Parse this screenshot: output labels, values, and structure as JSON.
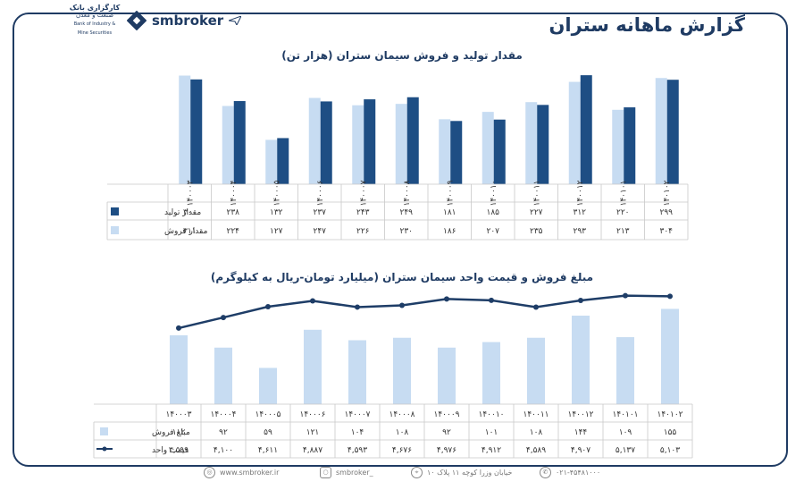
{
  "header": {
    "bank_name_line1": "کارگزاری بانک",
    "bank_name_line2": "صنعت و معدن",
    "bank_name_en": "Bank of Industry & Mine Securities",
    "brand": "smbroker",
    "page_title": "گزارش ماهانه ستران"
  },
  "footer": {
    "website": "www.smbroker.ir",
    "instagram": "smbroker_",
    "address": "خیابان وزرا کوچه ۱۱ پلاک ۱۰",
    "phone": "۰۲۱-۴۵۴۸۱۰۰۰"
  },
  "colors": {
    "production": "#1e4e84",
    "sales": "#c7dcf2",
    "line": "#1e3d67",
    "frame": "#1f3b63"
  },
  "chart_data": [
    {
      "type": "bar",
      "title": "مقدار تولید و فروش سیمان ستران (هزار تن)",
      "categories": [
        "۱۴۰۰۰۳",
        "۱۴۰۰۰۴",
        "۱۴۰۰۰۵",
        "۱۴۰۰۰۶",
        "۱۴۰۰۰۷",
        "۱۴۰۰۰۸",
        "۱۴۰۰۰۹",
        "۱۴۰۰۱۰",
        "۱۴۰۰۱۱",
        "۱۴۰۰۱۲",
        "۱۴۰۱۰۱",
        "۱۴۰۱۰۲"
      ],
      "series": [
        {
          "name": "مقدار تولید",
          "color": "#1e4e84",
          "values": [
            300,
            238,
            132,
            237,
            243,
            249,
            181,
            185,
            227,
            312,
            220,
            299
          ],
          "labels": [
            "۳۰۰",
            "۲۳۸",
            "۱۳۲",
            "۲۳۷",
            "۲۴۳",
            "۲۴۹",
            "۱۸۱",
            "۱۸۵",
            "۲۲۷",
            "۳۱۲",
            "۲۲۰",
            "۲۹۹"
          ]
        },
        {
          "name": "مقدار فروش",
          "color": "#c7dcf2",
          "values": [
            311,
            224,
            127,
            247,
            226,
            230,
            186,
            207,
            235,
            293,
            213,
            304
          ],
          "labels": [
            "۳۱۱",
            "۲۲۴",
            "۱۲۷",
            "۲۴۷",
            "۲۲۶",
            "۲۳۰",
            "۱۸۶",
            "۲۰۷",
            "۲۳۵",
            "۲۹۳",
            "۲۱۳",
            "۳۰۴"
          ]
        }
      ],
      "ylim": [
        0,
        320
      ],
      "grid": false,
      "legend": "data-table-bottom"
    },
    {
      "type": "bar+line",
      "title": "مبلغ فروش و قیمت واحد سیمان ستران (میلیارد تومان-ریال به کیلوگرم)",
      "categories": [
        "۱۴۰۰۰۳",
        "۱۴۰۰۰۴",
        "۱۴۰۰۰۵",
        "۱۴۰۰۰۶",
        "۱۴۰۰۰۷",
        "۱۴۰۰۰۸",
        "۱۴۰۰۰۹",
        "۱۴۰۰۱۰",
        "۱۴۰۰۱۱",
        "۱۴۰۰۱۲",
        "۱۴۰۱۰۱",
        "۱۴۰۱۰۲"
      ],
      "series": [
        {
          "name": "مبلغ فروش",
          "type": "bar",
          "color": "#c7dcf2",
          "values": [
            112,
            92,
            59,
            121,
            104,
            108,
            92,
            101,
            108,
            144,
            109,
            155
          ],
          "labels": [
            "۱۱۲",
            "۹۲",
            "۵۹",
            "۱۲۱",
            "۱۰۴",
            "۱۰۸",
            "۹۲",
            "۱۰۱",
            "۱۰۸",
            "۱۴۴",
            "۱۰۹",
            "۱۵۵"
          ]
        },
        {
          "name": "قیمت واحد",
          "type": "line",
          "color": "#1e3d67",
          "values": [
            3599,
            4100,
            4611,
            4887,
            4593,
            4676,
            4976,
            4912,
            4589,
            4907,
            5137,
            5103
          ],
          "labels": [
            "۳,۵۹۹",
            "۴,۱۰۰",
            "۴,۶۱۱",
            "۴,۸۸۷",
            "۴,۵۹۳",
            "۴,۶۷۶",
            "۴,۹۷۶",
            "۴,۹۱۲",
            "۴,۵۸۹",
            "۴,۹۰۷",
            "۵,۱۳۷",
            "۵,۱۰۳"
          ]
        }
      ],
      "bar_ylim": [
        0,
        160
      ],
      "line_ylim": [
        0,
        5500
      ],
      "grid": false,
      "legend": "data-table-bottom"
    }
  ]
}
